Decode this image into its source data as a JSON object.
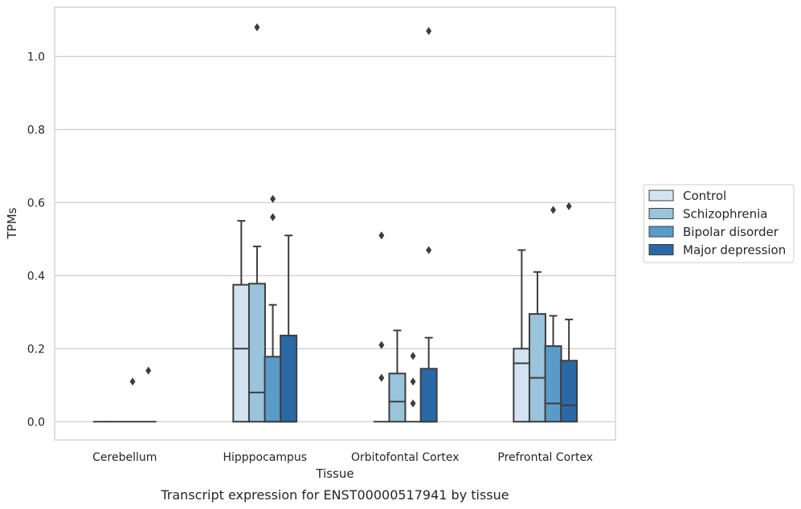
{
  "caption": "Transcript expression for ENST00000517941 by tissue",
  "chart_data": {
    "type": "box",
    "xlabel": "Tissue",
    "ylabel": "TPMs",
    "ylim": [
      -0.05,
      1.135
    ],
    "yticks": [
      0.0,
      0.2,
      0.4,
      0.6,
      0.8,
      1.0
    ],
    "ytick_labels": [
      "0.0",
      "0.2",
      "0.4",
      "0.6",
      "0.8",
      "1.0"
    ],
    "grid": "horizontal",
    "legend_position": "right",
    "categories": [
      "Cerebellum",
      "Hipppocampus",
      "Orbitofontal Cortex",
      "Prefrontal Cortex"
    ],
    "series": [
      {
        "name": "Control",
        "color": "#d3e3f1",
        "boxes": [
          {
            "q1": 0.0,
            "median": 0.0,
            "q3": 0.0,
            "whisker_low": 0.0,
            "whisker_high": 0.0,
            "outliers": []
          },
          {
            "q1": 0.0,
            "median": 0.2,
            "q3": 0.375,
            "whisker_low": 0.0,
            "whisker_high": 0.55,
            "outliers": []
          },
          {
            "q1": 0.0,
            "median": 0.0,
            "q3": 0.0,
            "whisker_low": 0.0,
            "whisker_high": 0.0,
            "outliers": [
              0.12,
              0.21,
              0.51
            ]
          },
          {
            "q1": 0.0,
            "median": 0.16,
            "q3": 0.2,
            "whisker_low": 0.0,
            "whisker_high": 0.47,
            "outliers": []
          }
        ]
      },
      {
        "name": "Schizophrenia",
        "color": "#9ac3dc",
        "boxes": [
          {
            "q1": 0.0,
            "median": 0.0,
            "q3": 0.0,
            "whisker_low": 0.0,
            "whisker_high": 0.0,
            "outliers": []
          },
          {
            "q1": 0.0,
            "median": 0.08,
            "q3": 0.378,
            "whisker_low": 0.0,
            "whisker_high": 0.48,
            "outliers": [
              1.08
            ]
          },
          {
            "q1": 0.0,
            "median": 0.055,
            "q3": 0.132,
            "whisker_low": 0.0,
            "whisker_high": 0.25,
            "outliers": []
          },
          {
            "q1": 0.0,
            "median": 0.12,
            "q3": 0.295,
            "whisker_low": 0.0,
            "whisker_high": 0.41,
            "outliers": []
          }
        ]
      },
      {
        "name": "Bipolar disorder",
        "color": "#5b9bc9",
        "boxes": [
          {
            "q1": 0.0,
            "median": 0.0,
            "q3": 0.0,
            "whisker_low": 0.0,
            "whisker_high": 0.0,
            "outliers": [
              0.11
            ]
          },
          {
            "q1": 0.0,
            "median": 0.0,
            "q3": 0.178,
            "whisker_low": 0.0,
            "whisker_high": 0.32,
            "outliers": [
              0.56,
              0.61
            ]
          },
          {
            "q1": 0.0,
            "median": 0.0,
            "q3": 0.0,
            "whisker_low": 0.0,
            "whisker_high": 0.0,
            "outliers": [
              0.05,
              0.11,
              0.18
            ]
          },
          {
            "q1": 0.0,
            "median": 0.05,
            "q3": 0.207,
            "whisker_low": 0.0,
            "whisker_high": 0.29,
            "outliers": [
              0.58
            ]
          }
        ]
      },
      {
        "name": "Major depression",
        "color": "#2b69a6",
        "boxes": [
          {
            "q1": 0.0,
            "median": 0.0,
            "q3": 0.0,
            "whisker_low": 0.0,
            "whisker_high": 0.0,
            "outliers": [
              0.14
            ]
          },
          {
            "q1": 0.0,
            "median": 0.0,
            "q3": 0.236,
            "whisker_low": 0.0,
            "whisker_high": 0.51,
            "outliers": []
          },
          {
            "q1": 0.0,
            "median": 0.0,
            "q3": 0.145,
            "whisker_low": 0.0,
            "whisker_high": 0.23,
            "outliers": [
              0.47,
              1.07
            ]
          },
          {
            "q1": 0.0,
            "median": 0.045,
            "q3": 0.167,
            "whisker_low": 0.0,
            "whisker_high": 0.28,
            "outliers": [
              0.59
            ]
          }
        ]
      }
    ]
  }
}
